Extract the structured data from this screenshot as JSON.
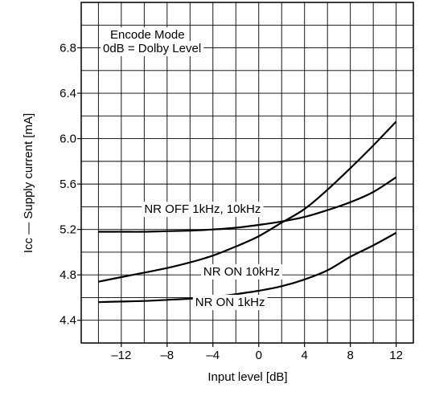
{
  "chart_data": {
    "type": "line",
    "title": "",
    "xlabel": "Input level   [dB]",
    "ylabel": "Icc — Supply current  [mA]",
    "xlim": [
      -15.5,
      13.5
    ],
    "ylim": [
      4.2,
      7.2
    ],
    "xticks": [
      -12,
      -8,
      -4,
      0,
      4,
      8,
      12
    ],
    "xtick_labels": [
      "–12",
      "–8",
      "–4",
      "0",
      "4",
      "8",
      "12"
    ],
    "yticks": [
      4.4,
      4.8,
      5.2,
      5.6,
      6.0,
      6.4,
      6.8
    ],
    "ytick_labels": [
      "4.4",
      "4.8",
      "5.2",
      "5.6",
      "6.0",
      "6.4",
      "6.8"
    ],
    "grid": true,
    "annotations": [
      "Encode Mode",
      "0dB = Dolby Level"
    ],
    "series": [
      {
        "name": "NR OFF 1kHz, 10kHz",
        "x": [
          -14,
          -12,
          -10,
          -8,
          -6,
          -4,
          -2,
          0,
          2,
          4,
          6,
          8,
          10,
          12
        ],
        "y": [
          5.18,
          5.18,
          5.18,
          5.185,
          5.19,
          5.2,
          5.215,
          5.24,
          5.27,
          5.31,
          5.37,
          5.44,
          5.53,
          5.66
        ]
      },
      {
        "name": "NR ON 10kHz",
        "x": [
          -14,
          -12,
          -10,
          -8,
          -6,
          -4,
          -2,
          0,
          2,
          4,
          6,
          8,
          10,
          12
        ],
        "y": [
          4.74,
          4.78,
          4.82,
          4.86,
          4.91,
          4.97,
          5.05,
          5.14,
          5.26,
          5.38,
          5.55,
          5.74,
          5.94,
          6.15
        ]
      },
      {
        "name": "NR ON 1kHz",
        "x": [
          -14,
          -12,
          -10,
          -8,
          -6,
          -4,
          -2,
          0,
          2,
          4,
          6,
          8,
          10,
          12
        ],
        "y": [
          4.56,
          4.565,
          4.57,
          4.58,
          4.59,
          4.605,
          4.63,
          4.66,
          4.7,
          4.76,
          4.84,
          4.96,
          5.06,
          5.17
        ]
      }
    ]
  }
}
